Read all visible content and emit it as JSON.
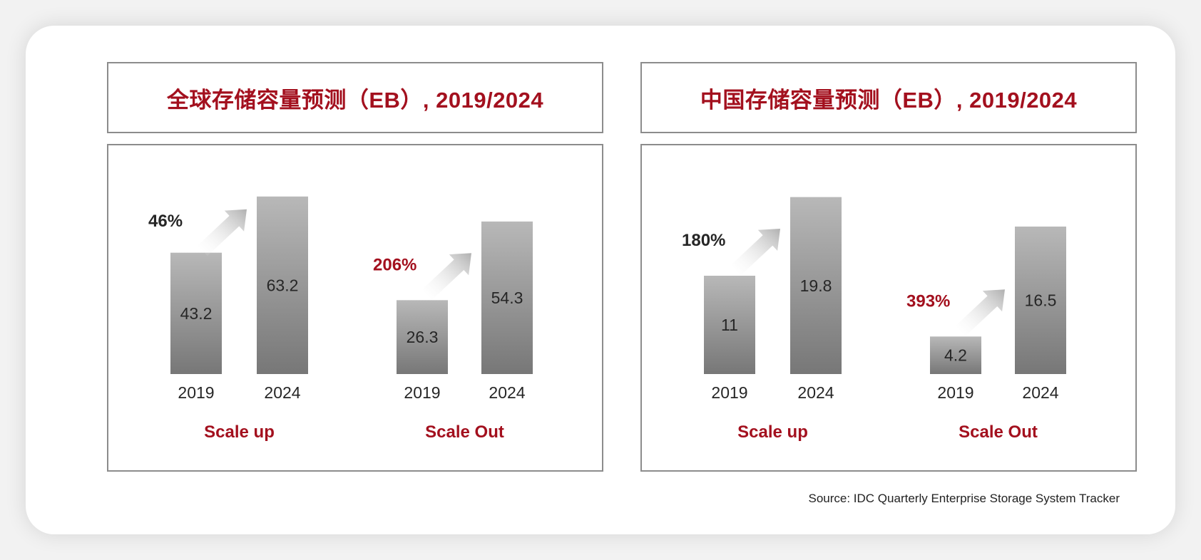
{
  "source": "Source: IDC Quarterly Enterprise Storage System Tracker",
  "colors": {
    "title": "#a3101e",
    "growth_dark": "#262626",
    "growth_red": "#a3101e",
    "bar_top": "#b8b8b8",
    "bar_bottom": "#777777"
  },
  "chart_data": [
    {
      "type": "bar",
      "title": "全球存储容量预测（EB）, 2019/2024",
      "ylim": [
        0,
        70
      ],
      "groups": [
        {
          "label": "Scale up",
          "categories": [
            "2019",
            "2024"
          ],
          "values": [
            43.2,
            63.2
          ],
          "growth": "46%",
          "growth_style": "dark"
        },
        {
          "label": "Scale Out",
          "categories": [
            "2019",
            "2024"
          ],
          "values": [
            26.3,
            54.3
          ],
          "growth": "206%",
          "growth_style": "red"
        }
      ]
    },
    {
      "type": "bar",
      "title": "中国存储容量预测（EB）, 2019/2024",
      "ylim": [
        0,
        22
      ],
      "groups": [
        {
          "label": "Scale up",
          "categories": [
            "2019",
            "2024"
          ],
          "values": [
            11,
            19.8
          ],
          "growth": "180%",
          "growth_style": "dark"
        },
        {
          "label": "Scale Out",
          "categories": [
            "2019",
            "2024"
          ],
          "values": [
            4.2,
            16.5
          ],
          "growth": "393%",
          "growth_style": "red"
        }
      ]
    }
  ]
}
